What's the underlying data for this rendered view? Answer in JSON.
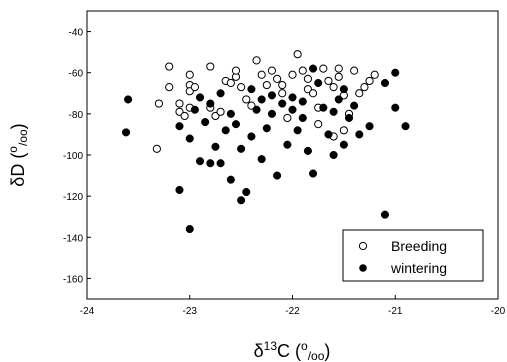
{
  "chart_data": {
    "type": "scatter",
    "xlabel": {
      "prefix": "δ",
      "sup": "13",
      "mid": "C (",
      "sup2": "o",
      "sub": "/oo",
      "suffix": ")"
    },
    "ylabel": {
      "prefix": "δD (",
      "sup": "o",
      "sub": "/oo",
      "suffix": ")"
    },
    "xlim": [
      -24,
      -20
    ],
    "ylim": [
      -170,
      -30
    ],
    "x_ticks": [
      -24,
      -23,
      -22,
      -21,
      -20
    ],
    "x_tick_labels": [
      "-24",
      "-23",
      "-22",
      "-21",
      "-20"
    ],
    "y_ticks": [
      -40,
      -60,
      -80,
      -100,
      -120,
      -140,
      -160
    ],
    "y_tick_labels": [
      "-40",
      "-60",
      "-80",
      "-100",
      "-120",
      "-140",
      "-160"
    ],
    "legend_position": "bottom-right",
    "series": [
      {
        "name": "Breeding",
        "marker": "open-circle",
        "color": "#000000",
        "points": [
          [
            -23.3,
            -75
          ],
          [
            -23.32,
            -97
          ],
          [
            -23.2,
            -57
          ],
          [
            -23.2,
            -67
          ],
          [
            -23.1,
            -75
          ],
          [
            -23.1,
            -79
          ],
          [
            -23.05,
            -81
          ],
          [
            -23.0,
            -61
          ],
          [
            -23.0,
            -66
          ],
          [
            -23.0,
            -69
          ],
          [
            -23.0,
            -77
          ],
          [
            -22.95,
            -67
          ],
          [
            -22.8,
            -57
          ],
          [
            -22.8,
            -77
          ],
          [
            -22.75,
            -81
          ],
          [
            -22.7,
            -79
          ],
          [
            -22.65,
            -64
          ],
          [
            -22.6,
            -65
          ],
          [
            -22.55,
            -62
          ],
          [
            -22.55,
            -59
          ],
          [
            -22.5,
            -67
          ],
          [
            -22.45,
            -73
          ],
          [
            -22.4,
            -76
          ],
          [
            -22.35,
            -54
          ],
          [
            -22.3,
            -61
          ],
          [
            -22.25,
            -66
          ],
          [
            -22.2,
            -59
          ],
          [
            -22.15,
            -63
          ],
          [
            -22.1,
            -66
          ],
          [
            -22.1,
            -70
          ],
          [
            -22.05,
            -82
          ],
          [
            -22.0,
            -61
          ],
          [
            -21.95,
            -51
          ],
          [
            -21.9,
            -59
          ],
          [
            -21.85,
            -63
          ],
          [
            -21.85,
            -68
          ],
          [
            -21.8,
            -70
          ],
          [
            -21.75,
            -77
          ],
          [
            -21.75,
            -85
          ],
          [
            -21.7,
            -58
          ],
          [
            -21.65,
            -64
          ],
          [
            -21.6,
            -67
          ],
          [
            -21.55,
            -58
          ],
          [
            -21.55,
            -62
          ],
          [
            -21.5,
            -71
          ],
          [
            -21.45,
            -80
          ],
          [
            -21.4,
            -59
          ],
          [
            -21.35,
            -70
          ],
          [
            -21.3,
            -67
          ],
          [
            -21.25,
            -64
          ],
          [
            -21.2,
            -61
          ],
          [
            -21.6,
            -91
          ],
          [
            -21.5,
            -88
          ]
        ]
      },
      {
        "name": "wintering",
        "marker": "filled-circle",
        "color": "#000000",
        "points": [
          [
            -23.6,
            -73
          ],
          [
            -23.62,
            -89
          ],
          [
            -23.1,
            -86
          ],
          [
            -23.1,
            -117
          ],
          [
            -23.0,
            -136
          ],
          [
            -23.0,
            -92
          ],
          [
            -22.95,
            -78
          ],
          [
            -22.9,
            -103
          ],
          [
            -22.85,
            -84
          ],
          [
            -22.8,
            -104
          ],
          [
            -22.75,
            -96
          ],
          [
            -22.7,
            -104
          ],
          [
            -22.65,
            -88
          ],
          [
            -22.6,
            -112
          ],
          [
            -22.55,
            -85
          ],
          [
            -22.5,
            -122
          ],
          [
            -22.5,
            -97
          ],
          [
            -22.45,
            -118
          ],
          [
            -22.4,
            -91
          ],
          [
            -22.35,
            -78
          ],
          [
            -22.3,
            -102
          ],
          [
            -22.25,
            -87
          ],
          [
            -22.2,
            -80
          ],
          [
            -22.15,
            -110
          ],
          [
            -22.1,
            -75
          ],
          [
            -22.05,
            -95
          ],
          [
            -22.0,
            -72
          ],
          [
            -21.95,
            -88
          ],
          [
            -21.9,
            -82
          ],
          [
            -21.85,
            -98
          ],
          [
            -21.8,
            -109
          ],
          [
            -21.8,
            -58
          ],
          [
            -21.75,
            -65
          ],
          [
            -21.7,
            -77
          ],
          [
            -21.65,
            -90
          ],
          [
            -21.6,
            -100
          ],
          [
            -21.55,
            -73
          ],
          [
            -21.5,
            -95
          ],
          [
            -21.45,
            -82
          ],
          [
            -21.35,
            -90
          ],
          [
            -21.25,
            -86
          ],
          [
            -21.1,
            -129
          ],
          [
            -21.1,
            -65
          ],
          [
            -21.0,
            -60
          ],
          [
            -21.0,
            -77
          ],
          [
            -20.9,
            -86
          ],
          [
            -22.9,
            -72
          ],
          [
            -22.8,
            -75
          ],
          [
            -22.7,
            -70
          ],
          [
            -22.6,
            -80
          ],
          [
            -22.4,
            -68
          ],
          [
            -22.3,
            -73
          ],
          [
            -22.2,
            -71
          ],
          [
            -22.0,
            -78
          ],
          [
            -21.9,
            -74
          ],
          [
            -21.6,
            -79
          ],
          [
            -21.5,
            -68
          ],
          [
            -21.4,
            -76
          ]
        ]
      }
    ]
  },
  "legend": {
    "items": [
      {
        "label": "Breeding"
      },
      {
        "label": "wintering"
      }
    ]
  }
}
